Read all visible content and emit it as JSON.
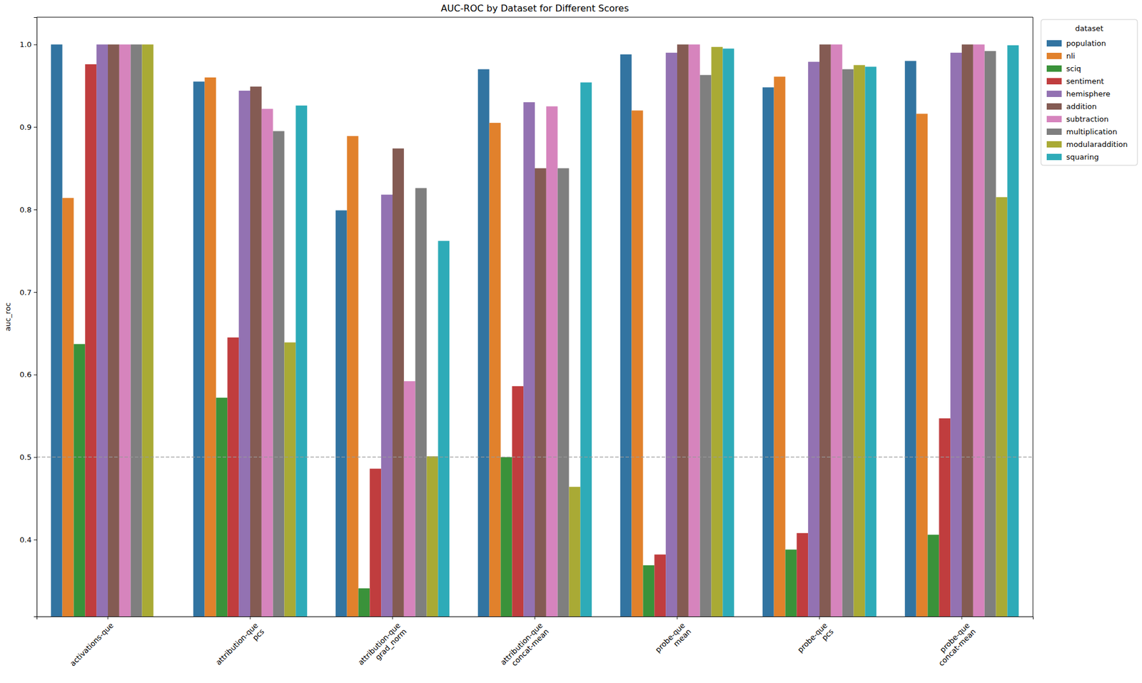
{
  "chart_data": {
    "type": "bar",
    "title": "AUC-ROC by Dataset for Different Scores",
    "y_label": "auc_roc",
    "legend_title": "dataset",
    "legend": "right",
    "grid": false,
    "categories": [
      "activations-que",
      "attribution-que\npcs",
      "attribution-que\ngrad_norm",
      "attribution-que\nconcat-mean",
      "probe-que\nmean",
      "probe-que\npcs",
      "probe-que\nconcat-mean"
    ],
    "ylim": [
      0.307,
      1.033
    ],
    "yticks": [
      0.4,
      0.5,
      0.6,
      0.7,
      0.8,
      0.9,
      {
        "value": 1,
        "label": "1.0"
      }
    ],
    "reference_line": 0.5,
    "series": [
      {
        "name": "population",
        "color": "#3274a1",
        "values": [
          1.0,
          0.955,
          0.799,
          0.97,
          0.988,
          0.948,
          0.98
        ]
      },
      {
        "name": "nli",
        "color": "#e1812c",
        "values": [
          0.814,
          0.96,
          0.889,
          0.905,
          0.92,
          0.961,
          0.916
        ]
      },
      {
        "name": "sciq",
        "color": "#3a923a",
        "values": [
          0.637,
          0.572,
          0.341,
          0.5,
          0.369,
          0.388,
          0.406
        ]
      },
      {
        "name": "sentiment",
        "color": "#c03d3e",
        "values": [
          0.976,
          0.645,
          0.486,
          0.586,
          0.382,
          0.408,
          0.547
        ]
      },
      {
        "name": "hemisphere",
        "color": "#9372b2",
        "values": [
          1.0,
          0.944,
          0.818,
          0.93,
          0.99,
          0.979,
          0.99
        ]
      },
      {
        "name": "addition",
        "color": "#845b53",
        "values": [
          1.0,
          0.949,
          0.874,
          0.85,
          1.0,
          1.0,
          1.0
        ]
      },
      {
        "name": "subtraction",
        "color": "#d684bd",
        "values": [
          1.0,
          0.922,
          0.592,
          0.925,
          1.0,
          1.0,
          1.0
        ]
      },
      {
        "name": "multiplication",
        "color": "#7f7f7f",
        "values": [
          1.0,
          0.895,
          0.826,
          0.85,
          0.963,
          0.97,
          0.992
        ]
      },
      {
        "name": "modularaddition",
        "color": "#a9aa35",
        "values": [
          1.0,
          0.639,
          0.501,
          0.464,
          0.997,
          0.975,
          0.815
        ]
      },
      {
        "name": "squaring",
        "color": "#2eabb8",
        "values": [
          null,
          0.926,
          0.762,
          0.954,
          0.995,
          0.973,
          0.999
        ]
      }
    ]
  }
}
